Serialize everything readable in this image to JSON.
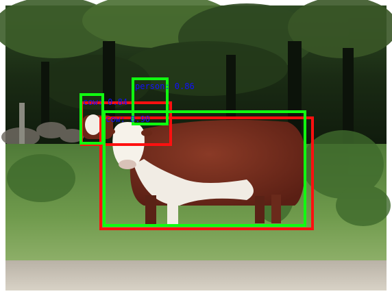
{
  "photo": {
    "subject": "cow-standing-in-field"
  },
  "colors": {
    "ground_truth_box": "#ff1010",
    "prediction_box": "#10ff10",
    "label_text": "#1010ff"
  },
  "detections": [
    {
      "label": "person",
      "score": "0.86",
      "text": "person: 0.86"
    },
    {
      "label": "cow",
      "score": "0.84",
      "text": "cow: 0.84"
    },
    {
      "label": "cow",
      "score": "0.90",
      "text": "cow: 0.90"
    }
  ],
  "ground_truth": [
    {
      "label": "cow"
    },
    {
      "label": "cow"
    }
  ]
}
